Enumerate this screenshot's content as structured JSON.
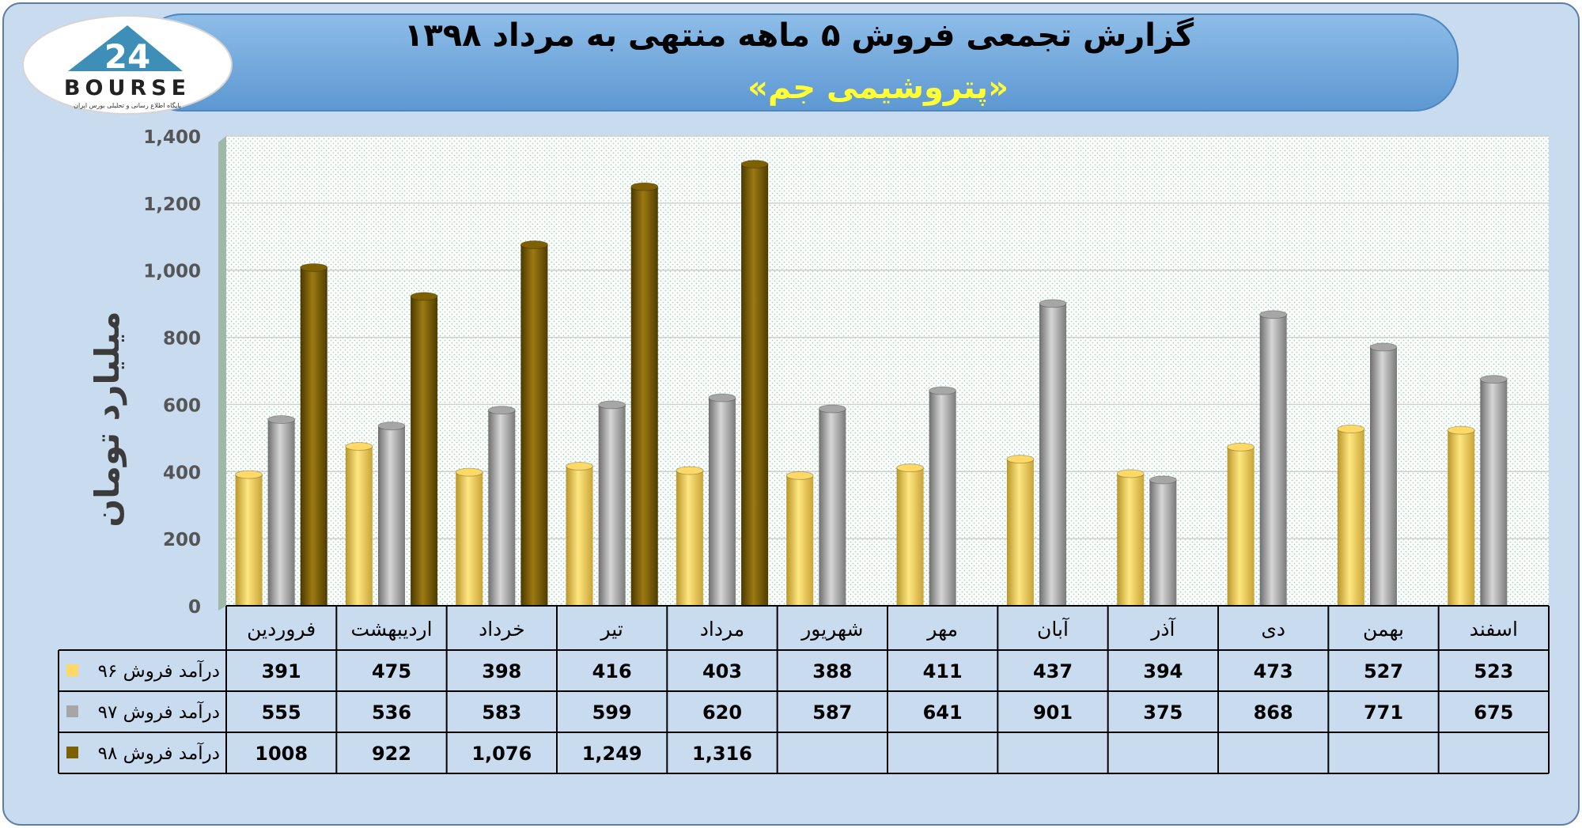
{
  "header": {
    "title": "گزارش تجمعی فروش ۵ ماهه منتهی به مرداد ۱۳۹۸",
    "subtitle": "«پتروشیمی جم»"
  },
  "logo": {
    "wordmark": "BOURSE",
    "number": "24",
    "tagline": "پایگاه اطلاع رسانی و تحلیلی بورس ایران"
  },
  "colors": {
    "panel": "#c9dcef",
    "banner": "#6fa8dc",
    "subtitle": "#ffff33",
    "plot_bg": "#ffffff",
    "plot_dot": "#8fcfae"
  },
  "chart_data": {
    "type": "bar",
    "ylabel": "میلیارد تومان",
    "ylim": [
      0,
      1400
    ],
    "yticks": [
      0,
      200,
      400,
      600,
      800,
      1000,
      1200,
      1400
    ],
    "ytick_labels": [
      "0",
      "200",
      "400",
      "600",
      "800",
      "1,000",
      "1,200",
      "1,400"
    ],
    "grid": true,
    "categories": [
      "فروردین",
      "اردیبهشت",
      "خرداد",
      "تیر",
      "مرداد",
      "شهریور",
      "مهر",
      "آبان",
      "آذر",
      "دی",
      "بهمن",
      "اسفند"
    ],
    "series": [
      {
        "name": "درآمد فروش ۹۶",
        "color": "#ffd966",
        "values": [
          391,
          475,
          398,
          416,
          403,
          388,
          411,
          437,
          394,
          473,
          527,
          523
        ],
        "labels": [
          "391",
          "475",
          "398",
          "416",
          "403",
          "388",
          "411",
          "437",
          "394",
          "473",
          "527",
          "523"
        ]
      },
      {
        "name": "درآمد فروش ۹۷",
        "color": "#a6a6a6",
        "values": [
          555,
          536,
          583,
          599,
          620,
          587,
          641,
          901,
          375,
          868,
          771,
          675
        ],
        "labels": [
          "555",
          "536",
          "583",
          "599",
          "620",
          "587",
          "641",
          "901",
          "375",
          "868",
          "771",
          "675"
        ]
      },
      {
        "name": "درآمد فروش ۹۸",
        "color": "#7f6000",
        "values": [
          1008,
          922,
          1076,
          1249,
          1316,
          null,
          null,
          null,
          null,
          null,
          null,
          null
        ],
        "labels": [
          "1008",
          "922",
          "1,076",
          "1,249",
          "1,316",
          "",
          "",
          "",
          "",
          "",
          "",
          ""
        ]
      }
    ]
  }
}
